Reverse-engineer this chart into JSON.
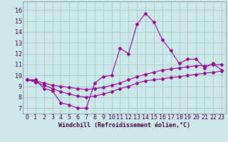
{
  "x": [
    0,
    1,
    2,
    3,
    4,
    5,
    6,
    7,
    8,
    9,
    10,
    11,
    12,
    13,
    14,
    15,
    16,
    17,
    18,
    19,
    20,
    21,
    22,
    23
  ],
  "line_main": [
    9.6,
    9.6,
    8.8,
    8.6,
    7.5,
    7.3,
    7.0,
    7.0,
    9.3,
    9.9,
    10.0,
    12.5,
    12.0,
    14.7,
    15.7,
    14.9,
    13.3,
    12.3,
    11.1,
    11.5,
    11.5,
    10.7,
    11.1,
    10.5
  ],
  "line_lo": [
    9.6,
    9.4,
    9.1,
    8.8,
    8.5,
    8.3,
    8.1,
    8.0,
    8.1,
    8.3,
    8.5,
    8.8,
    9.0,
    9.3,
    9.5,
    9.6,
    9.7,
    9.8,
    9.9,
    10.0,
    10.1,
    10.2,
    10.3,
    10.4
  ],
  "line_hi": [
    9.6,
    9.5,
    9.3,
    9.1,
    9.0,
    8.9,
    8.8,
    8.7,
    8.8,
    8.9,
    9.1,
    9.3,
    9.6,
    9.9,
    10.1,
    10.3,
    10.5,
    10.6,
    10.7,
    10.8,
    10.9,
    10.9,
    11.0,
    11.0
  ],
  "color": "#990099",
  "bg_color": "#cce8e8",
  "grid_color": "#aacccc",
  "yticks": [
    7,
    8,
    9,
    10,
    11,
    12,
    13,
    14,
    15,
    16
  ],
  "xlabel": "Windchill (Refroidissement éolien,°C)",
  "ylim": [
    6.5,
    16.8
  ],
  "xlim": [
    -0.5,
    23.5
  ],
  "xlabel_fontsize": 6.0,
  "tick_fontsize": 6.0,
  "marker_size": 2.0,
  "line_width": 0.8
}
